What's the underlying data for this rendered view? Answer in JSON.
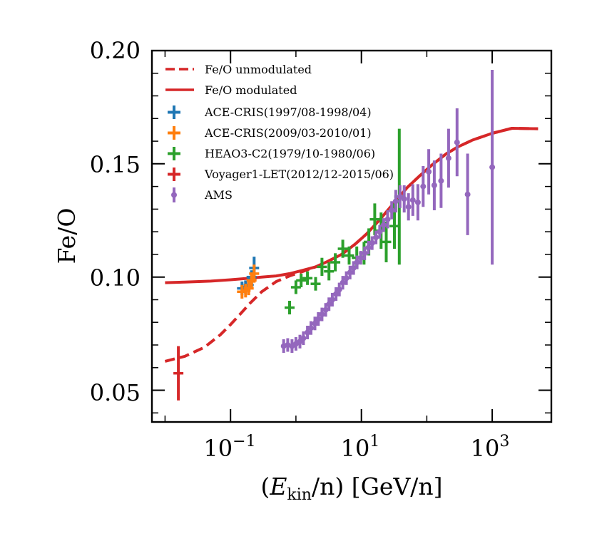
{
  "chart_data": {
    "type": "scatter",
    "title": "",
    "xlabel_parts": {
      "open": "(",
      "E": "E",
      "sub": "kin",
      "rest": "/n) [GeV/n]"
    },
    "ylabel": "Fe/O",
    "xscale": "log",
    "xlim": [
      0.0063,
      8000
    ],
    "ylim": [
      0.036,
      0.2
    ],
    "yticks": [
      0.05,
      0.1,
      0.15,
      0.2
    ],
    "ytick_labels": [
      "0.05",
      "0.10",
      "0.15",
      "0.20"
    ],
    "xticks": [
      0.1,
      10,
      1000
    ],
    "xtick_labels": [
      {
        "base": "10",
        "exp": "−1"
      },
      {
        "base": "10",
        "exp": "1"
      },
      {
        "base": "10",
        "exp": "3"
      }
    ],
    "legend_position": "upper-left",
    "colors": {
      "model": "#d62728",
      "ace1997": "#1f77b4",
      "ace2009": "#ff7f0e",
      "heao": "#2ca02c",
      "voyager": "#d62728",
      "ams": "#9467bd"
    },
    "lines": [
      {
        "name": "Fe/O unmodulated",
        "style": "dashed",
        "x": [
          0.01,
          0.02,
          0.04,
          0.07,
          0.1,
          0.15,
          0.2,
          0.3,
          0.5,
          0.8,
          1.2,
          2,
          3,
          5,
          8,
          12,
          20,
          30,
          50,
          80,
          120,
          200,
          300,
          500,
          1000,
          2000,
          5000
        ],
        "y": [
          0.0628,
          0.065,
          0.069,
          0.0745,
          0.079,
          0.0845,
          0.0885,
          0.0935,
          0.098,
          0.1005,
          0.1022,
          0.1045,
          0.1068,
          0.11,
          0.1145,
          0.119,
          0.126,
          0.132,
          0.1395,
          0.145,
          0.1495,
          0.1545,
          0.1575,
          0.1605,
          0.1635,
          0.1657,
          0.1655
        ]
      },
      {
        "name": "Fe/O modulated",
        "style": "solid",
        "x": [
          0.01,
          0.02,
          0.05,
          0.1,
          0.2,
          0.3,
          0.5,
          0.8,
          1.2,
          2,
          3,
          5,
          8,
          12,
          20,
          30,
          50,
          80,
          120,
          200,
          300,
          500,
          1000,
          2000,
          5000
        ],
        "y": [
          0.0975,
          0.0978,
          0.0982,
          0.0988,
          0.0995,
          0.1,
          0.1005,
          0.1015,
          0.1028,
          0.1045,
          0.1068,
          0.11,
          0.1145,
          0.119,
          0.126,
          0.132,
          0.1395,
          0.145,
          0.1495,
          0.1545,
          0.1575,
          0.1605,
          0.1635,
          0.1657,
          0.1655
        ]
      }
    ],
    "series": [
      {
        "name": "ACE-CRIS(1997/08-1998/04)",
        "marker": "plus",
        "x": [
          0.15,
          0.17,
          0.19,
          0.21,
          0.23
        ],
        "y": [
          0.095,
          0.0955,
          0.0965,
          0.1,
          0.104
        ],
        "err": [
          0.003,
          0.003,
          0.003,
          0.003,
          0.005
        ]
      },
      {
        "name": "ACE-CRIS(2009/03-2010/01)",
        "marker": "plus",
        "x": [
          0.15,
          0.17,
          0.19,
          0.21,
          0.23
        ],
        "y": [
          0.0935,
          0.094,
          0.095,
          0.0985,
          0.1015
        ],
        "err": [
          0.003,
          0.003,
          0.003,
          0.003,
          0.004
        ]
      },
      {
        "name": "HEAO3-C2(1979/10-1980/06)",
        "marker": "plus",
        "x": [
          0.8,
          1.0,
          1.2,
          1.5,
          2.0,
          2.5,
          3.2,
          4.0,
          5.2,
          6.5,
          8.5,
          11,
          13,
          16,
          20,
          24,
          32,
          38
        ],
        "y": [
          0.0865,
          0.0955,
          0.0985,
          0.0995,
          0.097,
          0.1045,
          0.1025,
          0.1065,
          0.1125,
          0.1095,
          0.1085,
          0.1105,
          0.1155,
          0.1255,
          0.1205,
          0.1155,
          0.1225,
          0.1355
        ],
        "err": [
          0.003,
          0.003,
          0.003,
          0.003,
          0.003,
          0.004,
          0.004,
          0.004,
          0.004,
          0.004,
          0.005,
          0.005,
          0.006,
          0.007,
          0.008,
          0.009,
          0.01,
          0.03
        ]
      },
      {
        "name": "Voyager1-LET(2012/12-2015/06)",
        "marker": "plus",
        "x": [
          0.016
        ],
        "y": [
          0.0575
        ],
        "err": [
          0.012
        ]
      },
      {
        "name": "AMS",
        "marker": "dot",
        "x": [
          0.65,
          0.75,
          0.87,
          1.0,
          1.15,
          1.3,
          1.5,
          1.7,
          1.95,
          2.2,
          2.5,
          2.85,
          3.2,
          3.6,
          4.1,
          4.6,
          5.2,
          5.9,
          6.7,
          7.6,
          8.6,
          9.8,
          11.2,
          12.8,
          14.6,
          16.7,
          19.1,
          21.9,
          25.2,
          29.1,
          33.6,
          38.9,
          45.1,
          52.5,
          61.2,
          73,
          88,
          107,
          130,
          165,
          215,
          290,
          420,
          1000
        ],
        "y": [
          0.0695,
          0.07,
          0.0695,
          0.0705,
          0.0715,
          0.073,
          0.0755,
          0.0775,
          0.0795,
          0.0815,
          0.0835,
          0.0855,
          0.088,
          0.09,
          0.0925,
          0.0945,
          0.0975,
          0.0995,
          0.102,
          0.104,
          0.1065,
          0.1085,
          0.1105,
          0.113,
          0.115,
          0.1175,
          0.12,
          0.123,
          0.1255,
          0.1295,
          0.1335,
          0.1355,
          0.1345,
          0.131,
          0.134,
          0.133,
          0.14,
          0.1465,
          0.1405,
          0.1425,
          0.1525,
          0.1595,
          0.1365,
          0.1485
        ],
        "err": [
          0.003,
          0.003,
          0.003,
          0.003,
          0.003,
          0.003,
          0.003,
          0.003,
          0.003,
          0.003,
          0.003,
          0.003,
          0.003,
          0.003,
          0.003,
          0.003,
          0.003,
          0.003,
          0.003,
          0.003,
          0.003,
          0.003,
          0.003,
          0.003,
          0.003,
          0.003,
          0.003,
          0.003,
          0.004,
          0.004,
          0.005,
          0.005,
          0.006,
          0.006,
          0.007,
          0.008,
          0.009,
          0.01,
          0.011,
          0.012,
          0.013,
          0.015,
          0.018,
          0.043
        ]
      }
    ]
  }
}
